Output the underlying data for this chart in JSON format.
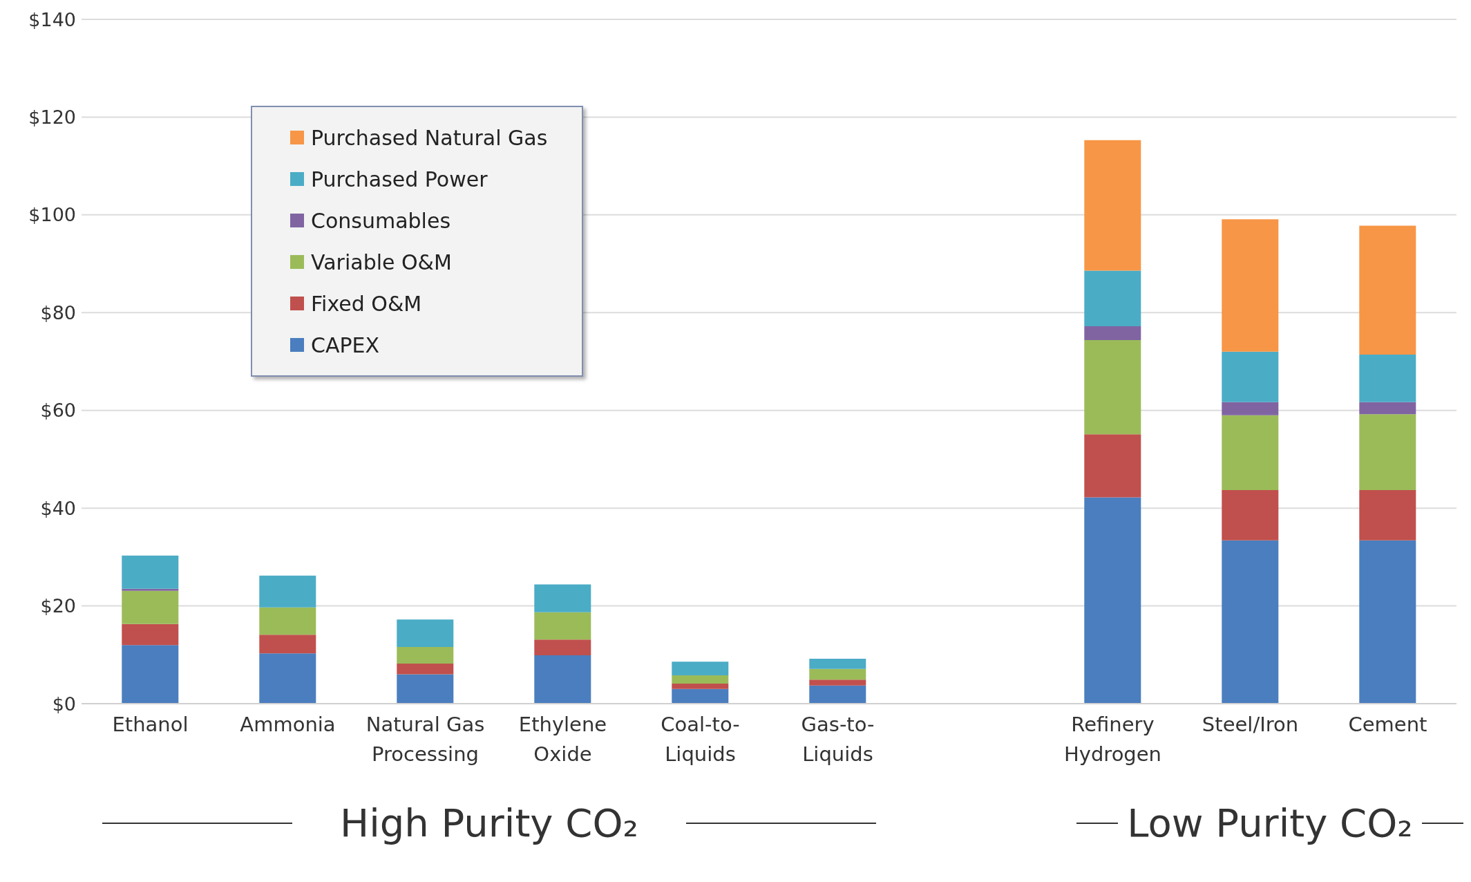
{
  "chart_data": {
    "type": "bar",
    "stacked": true,
    "categories": [
      "Ethanol",
      "Ammonia",
      "Natural Gas Processing",
      "Ethylene Oxide",
      "Coal-to-Liquids",
      "Gas-to-Liquids",
      null,
      "Refinery Hydrogen",
      "Steel/Iron",
      "Cement"
    ],
    "series": [
      {
        "name": "CAPEX",
        "color": "#4a7ebf",
        "values": [
          12.0,
          10.3,
          6.0,
          9.9,
          3.0,
          3.7,
          null,
          42.2,
          33.4,
          33.4
        ]
      },
      {
        "name": "Fixed O&M",
        "color": "#c0504d",
        "values": [
          4.3,
          3.8,
          2.2,
          3.2,
          1.1,
          1.2,
          null,
          12.9,
          10.3,
          10.3
        ]
      },
      {
        "name": "Variable O&M",
        "color": "#9bbb59",
        "values": [
          6.8,
          5.6,
          3.4,
          5.6,
          1.7,
          2.2,
          null,
          19.3,
          15.3,
          15.5
        ]
      },
      {
        "name": "Consumables",
        "color": "#8064a2",
        "values": [
          0.4,
          0,
          0,
          0,
          0,
          0,
          null,
          2.8,
          2.7,
          2.5
        ]
      },
      {
        "name": "Purchased Power",
        "color": "#4bacc6",
        "values": [
          6.8,
          6.5,
          5.6,
          5.7,
          2.8,
          2.1,
          null,
          11.4,
          10.3,
          9.7
        ]
      },
      {
        "name": "Purchased Natural Gas",
        "color": "#f79646",
        "values": [
          0,
          0,
          0,
          0,
          0,
          0,
          null,
          26.7,
          27.1,
          26.4
        ]
      }
    ],
    "ylim": [
      0,
      140
    ],
    "yticks": [
      {
        "value": 0,
        "label": "$0"
      },
      {
        "value": 20,
        "label": "$20"
      },
      {
        "value": 40,
        "label": "$40"
      },
      {
        "value": 60,
        "label": "$60"
      },
      {
        "value": 80,
        "label": "$80"
      },
      {
        "value": 100,
        "label": "$100"
      },
      {
        "value": 120,
        "label": "$120"
      },
      {
        "value": 140,
        "label": "$140"
      }
    ],
    "grid": "y",
    "legend": "top left",
    "annotations": [
      "High Purity CO₂",
      "Low Purity CO₂"
    ]
  }
}
